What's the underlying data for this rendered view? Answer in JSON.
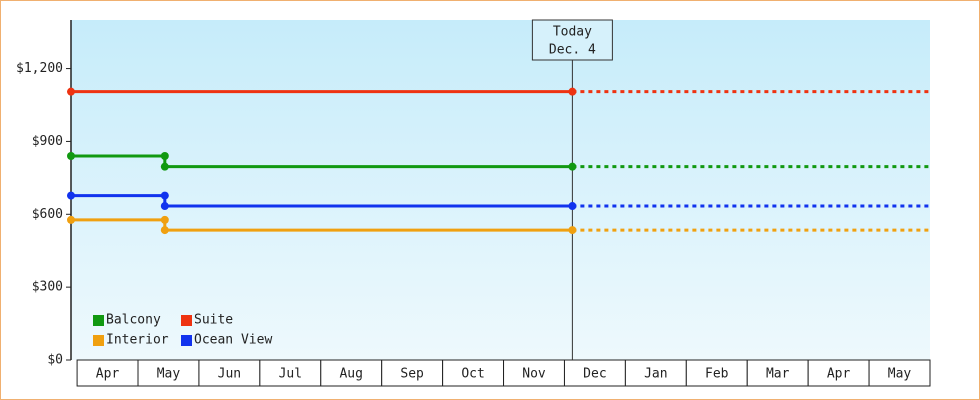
{
  "chart_data": {
    "type": "line",
    "annotation": {
      "lines": [
        "Today",
        "Dec. 4"
      ],
      "x": 8.13
    },
    "categories": [
      "Apr",
      "May",
      "Jun",
      "Jul",
      "Aug",
      "Sep",
      "Oct",
      "Nov",
      "Dec",
      "Jan",
      "Feb",
      "Mar",
      "Apr",
      "May"
    ],
    "xlim": [
      -0.1,
      14
    ],
    "ylim": [
      0,
      1400
    ],
    "yticks": [
      {
        "value": 0,
        "label": "$0"
      },
      {
        "value": 300,
        "label": "$300"
      },
      {
        "value": 600,
        "label": "$600"
      },
      {
        "value": 900,
        "label": "$900"
      },
      {
        "value": 1200,
        "label": "$1,200"
      }
    ],
    "series": [
      {
        "name": "Balcony",
        "color": "#119911",
        "x": [
          -0.1,
          1.44,
          1.44,
          8.13
        ],
        "values": [
          840,
          840,
          796,
          796
        ]
      },
      {
        "name": "Suite",
        "color": "#ee3311",
        "x": [
          -0.1,
          8.13
        ],
        "values": [
          1105,
          1105
        ]
      },
      {
        "name": "Interior",
        "color": "#f0a010",
        "x": [
          -0.1,
          1.44,
          1.44,
          8.13
        ],
        "values": [
          577,
          577,
          535,
          535
        ]
      },
      {
        "name": "Ocean View",
        "color": "#1133ee",
        "x": [
          -0.1,
          1.44,
          1.44,
          8.13
        ],
        "values": [
          677,
          677,
          634,
          634
        ]
      }
    ],
    "legend": "lower left"
  }
}
